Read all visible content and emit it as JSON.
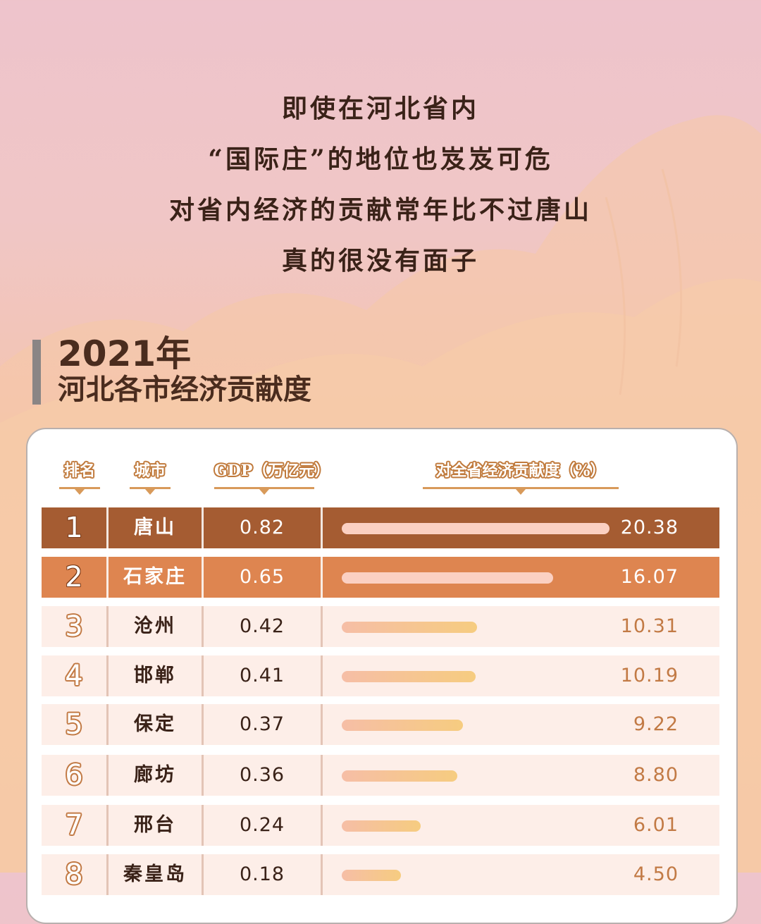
{
  "intro": {
    "lines": [
      "即使在河北省内",
      "“国际庄”的地位也岌岌可危",
      "对省内经济的贡献常年比不过唐山",
      "真的很没有面子"
    ]
  },
  "heading": {
    "year": "2021年",
    "title": "河北各市经济贡献度"
  },
  "table": {
    "headers": [
      "排名",
      "城市",
      "GDP（万亿元）",
      "对全省经济贡献度（%）"
    ]
  },
  "colors": {
    "row1_bg": "#a55c32",
    "row2_bg": "#de8550",
    "row_bg": "#fdeee8",
    "bar_top": "#fbd0c2",
    "bar_gradient_start": "#f6bea6",
    "bar_gradient_end": "#f6cc80",
    "text_dark": "#3a2218",
    "pct_color": "#c27a45"
  },
  "chart_data": {
    "type": "table",
    "columns": [
      "排名",
      "城市",
      "GDP（万亿元）",
      "对全省经济贡献度（%）"
    ],
    "rows": [
      {
        "rank": "1",
        "city": "唐山",
        "gdp": "0.82",
        "share": "20.38",
        "share_value": 20.38
      },
      {
        "rank": "2",
        "city": "石家庄",
        "gdp": "0.65",
        "share": "16.07",
        "share_value": 16.07
      },
      {
        "rank": "3",
        "city": "沧州",
        "gdp": "0.42",
        "share": "10.31",
        "share_value": 10.31
      },
      {
        "rank": "4",
        "city": "邯郸",
        "gdp": "0.41",
        "share": "10.19",
        "share_value": 10.19
      },
      {
        "rank": "5",
        "city": "保定",
        "gdp": "0.37",
        "share": "9.22",
        "share_value": 9.22
      },
      {
        "rank": "6",
        "city": "廊坊",
        "gdp": "0.36",
        "share": "8.80",
        "share_value": 8.8
      },
      {
        "rank": "7",
        "city": "邢台",
        "gdp": "0.24",
        "share": "6.01",
        "share_value": 6.01
      },
      {
        "rank": "8",
        "city": "秦皇岛",
        "gdp": "0.18",
        "share": "4.50",
        "share_value": 4.5
      }
    ],
    "bar_max": 20.38
  }
}
